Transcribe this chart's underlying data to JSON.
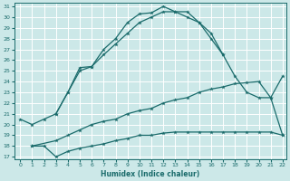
{
  "xlabel": "Humidex (Indice chaleur)",
  "background_color": "#cce8e8",
  "grid_color": "#ffffff",
  "line_color": "#1a6b6b",
  "xlim": [
    -0.5,
    22.3
  ],
  "ylim": [
    16.8,
    31.3
  ],
  "xticks": [
    0,
    1,
    2,
    3,
    4,
    5,
    6,
    7,
    8,
    9,
    10,
    11,
    12,
    13,
    14,
    15,
    16,
    17,
    18,
    19,
    20,
    21,
    22
  ],
  "yticks": [
    17,
    18,
    19,
    20,
    21,
    22,
    23,
    24,
    25,
    26,
    27,
    28,
    29,
    30,
    31
  ],
  "line1_x": [
    0,
    1,
    2,
    3,
    4,
    5,
    6,
    7,
    8,
    9,
    10,
    11,
    12,
    13,
    14,
    15,
    16,
    17
  ],
  "line1_y": [
    20.5,
    20.0,
    20.5,
    21.0,
    23.0,
    25.3,
    25.4,
    27.0,
    28.0,
    29.5,
    30.3,
    30.4,
    31.0,
    30.5,
    30.5,
    29.5,
    28.5,
    26.5
  ],
  "line2_x": [
    3,
    4,
    5,
    6,
    7,
    8,
    9,
    10,
    11,
    12,
    13,
    14,
    15,
    16,
    17,
    18,
    19,
    20,
    21,
    22
  ],
  "line2_y": [
    21.0,
    23.0,
    25.0,
    25.4,
    26.5,
    27.5,
    28.5,
    29.5,
    30.0,
    30.5,
    30.5,
    30.0,
    29.5,
    28.0,
    26.5,
    24.5,
    23.0,
    22.5,
    22.5,
    24.5
  ],
  "line3_x": [
    1,
    3,
    4,
    5,
    6,
    7,
    8,
    9,
    10,
    11,
    12,
    13,
    14,
    15,
    16,
    17,
    18,
    19,
    20,
    21,
    22
  ],
  "line3_y": [
    18.0,
    18.5,
    19.0,
    19.5,
    20.0,
    20.3,
    20.5,
    21.0,
    21.3,
    21.5,
    22.0,
    22.3,
    22.5,
    23.0,
    23.3,
    23.5,
    23.8,
    23.9,
    24.0,
    22.5,
    19.0
  ],
  "line4_x": [
    1,
    2,
    3,
    4,
    5,
    6,
    7,
    8,
    9,
    10,
    11,
    12,
    13,
    14,
    15,
    16,
    17,
    18,
    19,
    20,
    21,
    22
  ],
  "line4_y": [
    18.0,
    18.0,
    17.0,
    17.5,
    17.8,
    18.0,
    18.2,
    18.5,
    18.7,
    19.0,
    19.0,
    19.2,
    19.3,
    19.3,
    19.3,
    19.3,
    19.3,
    19.3,
    19.3,
    19.3,
    19.3,
    19.0
  ]
}
